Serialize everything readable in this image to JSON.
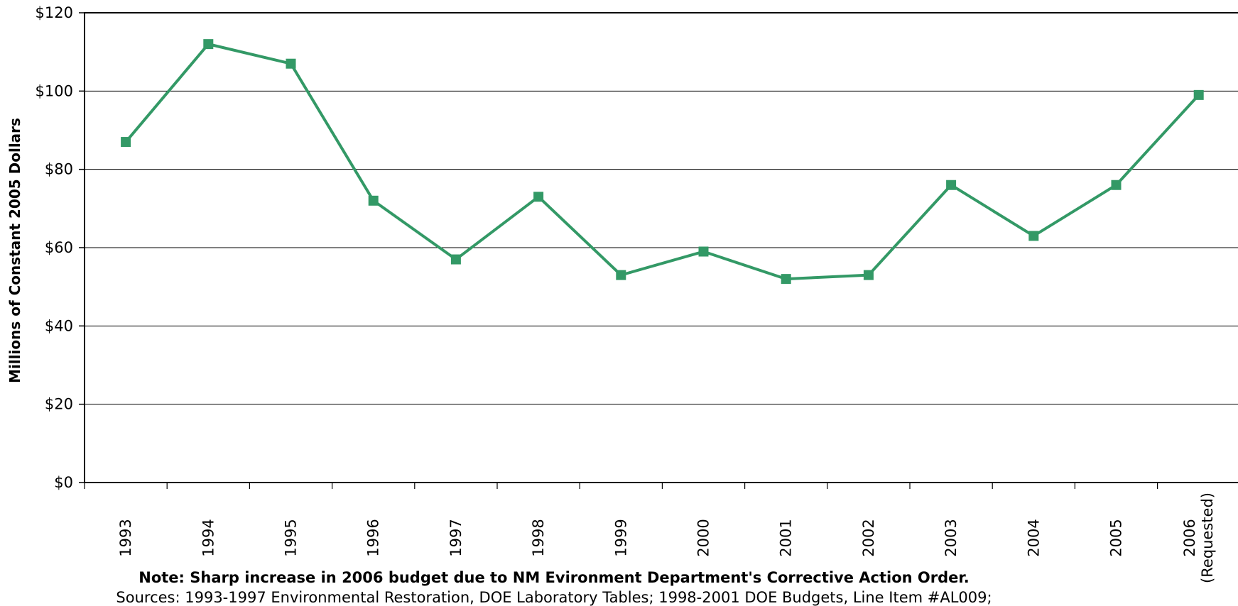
{
  "chart_data": {
    "type": "line",
    "ylabel": "Millions of Constant 2005 Dollars",
    "xlabel": "",
    "categories": [
      "1993",
      "1994",
      "1995",
      "1996",
      "1997",
      "1998",
      "1999",
      "2000",
      "2001",
      "2002",
      "2003",
      "2004",
      "2005",
      "2006 (Requested)"
    ],
    "series": [
      {
        "values": [
          87,
          112,
          107,
          72,
          57,
          73,
          53,
          59,
          52,
          53,
          76,
          63,
          76,
          99
        ]
      }
    ],
    "ylim": [
      0,
      120
    ],
    "yticks": [
      0,
      20,
      40,
      60,
      80,
      100,
      120
    ],
    "ytick_labels": [
      "$0",
      "$20",
      "$40",
      "$60",
      "$80",
      "$100",
      "$120"
    ],
    "grid": true,
    "legend": "none",
    "colors": {
      "line": "#339966",
      "grid": "#000000",
      "axis": "#000000"
    },
    "annotations": [
      "Note: Sharp increase in 2006 budget due to NM Evironment Department's Corrective Action Order.",
      "Sources: 1993-1997 Environmental Restoration, DOE Laboratory Tables;  1998-2001 DOE Budgets, Line Item #AL009;"
    ]
  }
}
